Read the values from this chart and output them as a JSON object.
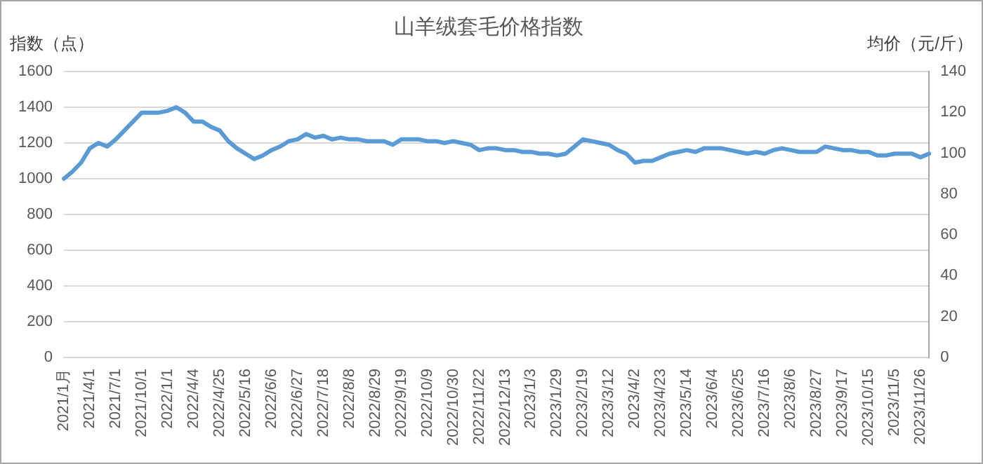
{
  "chart_data": {
    "type": "line",
    "title": "山羊绒套毛价格指数",
    "ylabel": "指数（点）",
    "y2label": "均价（元/斤）",
    "categories": [
      "2021/1月",
      null,
      null,
      "2021/4/1",
      null,
      null,
      "2021/7/1",
      null,
      null,
      "2021/10/1",
      null,
      null,
      "2022/1/1",
      null,
      null,
      "2022/4/4",
      null,
      null,
      "2022/4/25",
      null,
      null,
      "2022/5/16",
      null,
      null,
      "2022/6/6",
      null,
      null,
      "2022/6/27",
      null,
      null,
      "2022/7/18",
      null,
      null,
      "2022/8/8",
      null,
      null,
      "2022/8/29",
      null,
      null,
      "2022/9/19",
      null,
      null,
      "2022/10/9",
      null,
      null,
      "2022/10/30",
      null,
      null,
      "2022/11/22",
      null,
      null,
      "2022/12/13",
      null,
      null,
      "2023/1/3",
      null,
      null,
      "2023/1/29",
      null,
      null,
      "2023/2/19",
      null,
      null,
      "2023/3/12",
      null,
      null,
      "2023/4/2",
      null,
      null,
      "2023/4/23",
      null,
      null,
      "2023/5/14",
      null,
      null,
      "2023/6/4",
      null,
      null,
      "2023/6/25",
      null,
      null,
      "2023/7/16",
      null,
      null,
      "2023/8/6",
      null,
      null,
      "2023/8/27",
      null,
      null,
      "2023/9/17",
      null,
      null,
      "2023/10/15",
      null,
      null,
      "2023/11/5",
      null,
      null,
      "2023/11/26",
      null
    ],
    "series": [
      {
        "color": "#5b9bd5",
        "values": [
          1000,
          1040,
          1090,
          1170,
          1200,
          1180,
          1220,
          1270,
          1320,
          1370,
          1370,
          1370,
          1380,
          1400,
          1370,
          1320,
          1320,
          1290,
          1270,
          1210,
          1170,
          1140,
          1110,
          1130,
          1160,
          1180,
          1210,
          1220,
          1250,
          1230,
          1240,
          1220,
          1230,
          1220,
          1220,
          1210,
          1210,
          1210,
          1190,
          1220,
          1220,
          1220,
          1210,
          1210,
          1200,
          1210,
          1200,
          1190,
          1160,
          1170,
          1170,
          1160,
          1160,
          1150,
          1150,
          1140,
          1140,
          1130,
          1140,
          1180,
          1220,
          1210,
          1200,
          1190,
          1160,
          1140,
          1090,
          1100,
          1100,
          1120,
          1140,
          1150,
          1160,
          1150,
          1170,
          1170,
          1170,
          1160,
          1150,
          1140,
          1150,
          1140,
          1160,
          1170,
          1160,
          1150,
          1150,
          1150,
          1180,
          1170,
          1160,
          1160,
          1150,
          1150,
          1130,
          1130,
          1140,
          1140,
          1140,
          1120,
          1140
        ]
      }
    ],
    "ylim": [
      0,
      1600
    ],
    "yticks": [
      0,
      200,
      400,
      600,
      800,
      1000,
      1200,
      1400,
      1600
    ],
    "y2lim": [
      0,
      140
    ],
    "y2ticks": [
      0,
      20,
      40,
      60,
      80,
      100,
      120,
      140
    ],
    "grid": "y",
    "legend": false,
    "marker": "none",
    "line_style": "solid"
  }
}
